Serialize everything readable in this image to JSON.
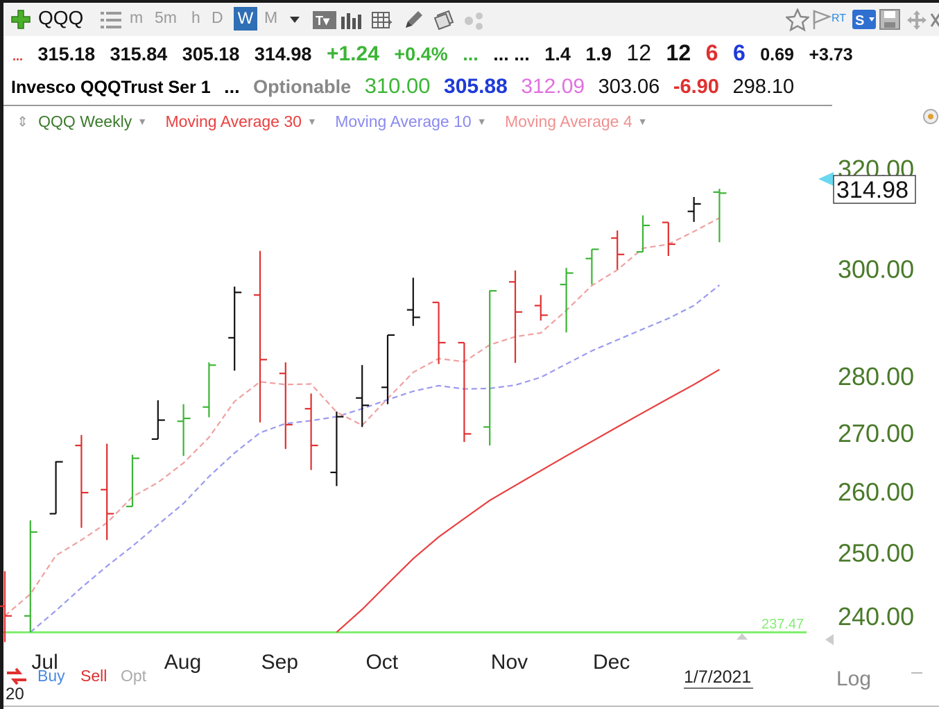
{
  "toolbar": {
    "symbol": "QQQ",
    "intervals": [
      "m",
      "5m",
      "h",
      "D",
      "W",
      "M"
    ],
    "active_interval": "W",
    "rt_label": "RT",
    "s_label": "S",
    "icons": [
      "plus-icon",
      "list-icon",
      "dropdown-arrow-icon",
      "text-icon",
      "bars-icon",
      "grid-icon",
      "pencil-icon",
      "copy-icon",
      "dots-icon",
      "star-icon",
      "flag-icon",
      "save-icon",
      "move-icon",
      "close-icon"
    ]
  },
  "quote": {
    "prefix": "...",
    "open": "315.18",
    "high": "315.84",
    "low": "305.18",
    "close": "314.98",
    "change": "+1.24",
    "change_pct": "+0.4%",
    "gap1": "...",
    "gap2": "... ...",
    "v1": "1.4",
    "v2": "1.9",
    "v3": "12",
    "v4": "12",
    "v5": "6",
    "v6": "6",
    "v7": "0.69",
    "v8": "+3.73"
  },
  "info": {
    "name": "Invesco QQQTrust Ser 1",
    "dots": "...",
    "optionable": "Optionable",
    "p1": "310.00",
    "p2": "305.88",
    "p3": "312.09",
    "p4": "303.06",
    "p5": "-6.90",
    "p6": "298.10"
  },
  "legend": {
    "series_label": "QQQ Weekly",
    "ma30_label": "Moving Average 30",
    "ma10_label": "Moving Average 10",
    "ma4_label": "Moving Average 4"
  },
  "colors": {
    "up": "#3cb536",
    "down": "#e03030",
    "neutral": "#111111",
    "ma30": "#e84040",
    "ma10": "#9a9af0",
    "ma4": "#f0a0a0",
    "hline": "#80ee70",
    "axis_text": "#4a7a2a"
  },
  "bottom": {
    "buy": "Buy",
    "sell": "Sell",
    "opt": "Opt",
    "year": "20",
    "date": "1/7/2021",
    "log": "Log"
  },
  "chart_data": {
    "type": "ohlc",
    "title": "QQQ Weekly",
    "ylim": [
      237,
      323
    ],
    "yscale": "log",
    "yticks": [
      "320.00",
      "300.00",
      "280.00",
      "270.00",
      "260.00",
      "250.00",
      "240.00"
    ],
    "xticks": [
      "Jul",
      "Aug",
      "Sep",
      "Oct",
      "Nov",
      "Dec"
    ],
    "last_price": "314.98",
    "hline": {
      "value": 237.47,
      "label": "237.47"
    },
    "bars": [
      {
        "o": 241.5,
        "h": 247.0,
        "l": 236.0,
        "c": 240.0,
        "color": "down"
      },
      {
        "o": 240.0,
        "h": 255.2,
        "l": 237.5,
        "c": 253.3,
        "color": "up"
      },
      {
        "o": 256.3,
        "h": 265.1,
        "l": 256.3,
        "c": 265.0,
        "color": "neutral"
      },
      {
        "o": 267.8,
        "h": 269.6,
        "l": 254.0,
        "c": 259.8,
        "color": "down"
      },
      {
        "o": 260.3,
        "h": 268.1,
        "l": 252.0,
        "c": 256.3,
        "color": "down"
      },
      {
        "o": 257.5,
        "h": 266.2,
        "l": 257.5,
        "c": 265.6,
        "color": "up"
      },
      {
        "o": 268.9,
        "h": 275.7,
        "l": 268.9,
        "c": 272.2,
        "color": "neutral"
      },
      {
        "o": 272.0,
        "h": 275.0,
        "l": 266.0,
        "c": 272.5,
        "color": "up"
      },
      {
        "o": 274.5,
        "h": 282.5,
        "l": 272.7,
        "c": 282.0,
        "color": "up"
      },
      {
        "o": 287.0,
        "h": 296.6,
        "l": 281.0,
        "c": 295.5,
        "color": "neutral"
      },
      {
        "o": 295.0,
        "h": 303.5,
        "l": 271.8,
        "c": 283.0,
        "color": "down"
      },
      {
        "o": 280.5,
        "h": 282.5,
        "l": 267.2,
        "c": 271.4,
        "color": "down"
      },
      {
        "o": 274.2,
        "h": 276.9,
        "l": 263.6,
        "c": 267.8,
        "color": "down"
      },
      {
        "o": 263.2,
        "h": 273.7,
        "l": 260.9,
        "c": 272.8,
        "color": "neutral"
      },
      {
        "o": 276.1,
        "h": 282.0,
        "l": 271.0,
        "c": 274.8,
        "color": "neutral"
      },
      {
        "o": 278.0,
        "h": 287.5,
        "l": 275.0,
        "c": 287.5,
        "color": "neutral"
      },
      {
        "o": 292.2,
        "h": 298.3,
        "l": 289.2,
        "c": 290.8,
        "color": "neutral"
      },
      {
        "o": 293.6,
        "h": 293.6,
        "l": 282.2,
        "c": 286.1,
        "color": "down"
      },
      {
        "o": 286.1,
        "h": 286.1,
        "l": 268.4,
        "c": 269.8,
        "color": "down"
      },
      {
        "o": 271.0,
        "h": 295.9,
        "l": 267.8,
        "c": 295.8,
        "color": "up"
      },
      {
        "o": 297.5,
        "h": 299.7,
        "l": 282.4,
        "c": 291.8,
        "color": "down"
      },
      {
        "o": 293.0,
        "h": 295.0,
        "l": 290.2,
        "c": 291.2,
        "color": "down"
      },
      {
        "o": 297.0,
        "h": 300.2,
        "l": 288.0,
        "c": 299.2,
        "color": "up"
      },
      {
        "o": 302.0,
        "h": 303.8,
        "l": 297.0,
        "c": 303.8,
        "color": "up"
      },
      {
        "o": 306.0,
        "h": 307.5,
        "l": 299.9,
        "c": 302.8,
        "color": "down"
      },
      {
        "o": 303.3,
        "h": 310.5,
        "l": 303.3,
        "c": 308.5,
        "color": "up"
      },
      {
        "o": 309.1,
        "h": 309.1,
        "l": 302.5,
        "c": 304.8,
        "color": "down"
      },
      {
        "o": 311.3,
        "h": 314.2,
        "l": 309.2,
        "c": 312.8,
        "color": "neutral"
      },
      {
        "o": 315.18,
        "h": 315.84,
        "l": 305.18,
        "c": 314.98,
        "color": "up"
      }
    ],
    "series": [
      {
        "name": "Moving Average 30",
        "values": [
          null,
          null,
          null,
          null,
          null,
          null,
          null,
          null,
          null,
          null,
          null,
          null,
          null,
          237.5,
          241.0,
          245.0,
          249.0,
          252.5,
          255.5,
          258.5,
          261.0,
          263.5,
          266.0,
          268.5,
          271.0,
          273.5,
          276.0,
          278.5,
          281.2
        ]
      },
      {
        "name": "Moving Average 10",
        "values": [
          null,
          237.5,
          240.8,
          244.4,
          247.8,
          251.0,
          254.5,
          258.0,
          262.5,
          266.5,
          270.0,
          271.6,
          272.1,
          272.8,
          274.2,
          275.8,
          277.3,
          278.3,
          277.7,
          277.8,
          278.4,
          279.8,
          282.2,
          284.6,
          286.6,
          288.6,
          290.6,
          293.0,
          296.9
        ]
      },
      {
        "name": "Moving Average 4",
        "values": [
          240.0,
          243.4,
          249.5,
          252.0,
          254.8,
          259.1,
          261.5,
          264.8,
          269.2,
          275.5,
          279.0,
          278.5,
          278.6,
          273.6,
          271.3,
          276.0,
          280.7,
          283.2,
          282.6,
          285.7,
          287.2,
          287.9,
          292.1,
          296.8,
          299.8,
          304.0,
          304.8,
          307.3,
          310.0
        ]
      }
    ]
  }
}
